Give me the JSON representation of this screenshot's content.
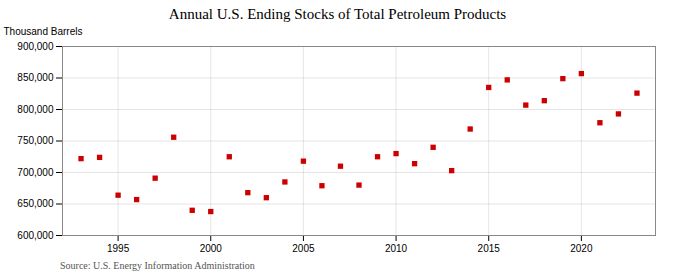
{
  "chart_data": {
    "type": "scatter",
    "title": "Annual U.S. Ending Stocks of Total Petroleum Products",
    "ylabel": "Thousand Barrels",
    "source": "Source: U.S. Energy Information Administration",
    "x": [
      1993,
      1994,
      1995,
      1996,
      1997,
      1998,
      1999,
      2000,
      2001,
      2002,
      2003,
      2004,
      2005,
      2006,
      2007,
      2008,
      2009,
      2010,
      2011,
      2012,
      2013,
      2014,
      2015,
      2016,
      2017,
      2018,
      2019,
      2020,
      2021,
      2022,
      2023
    ],
    "values": [
      722000,
      724000,
      664000,
      657000,
      691000,
      756000,
      640000,
      638000,
      725000,
      668000,
      660000,
      685000,
      718000,
      679000,
      710000,
      680000,
      725000,
      730000,
      714000,
      740000,
      703000,
      769000,
      835000,
      847000,
      807000,
      814000,
      849000,
      857000,
      779000,
      793000,
      826000
    ],
    "color": "#cc0000",
    "marker": "square",
    "xlim": [
      1992,
      2024
    ],
    "ylim": [
      600000,
      900000
    ],
    "xticks": [
      1995,
      2000,
      2005,
      2010,
      2015,
      2020
    ],
    "yticks": [
      {
        "value": 600000,
        "label": "600,000"
      },
      {
        "value": 650000,
        "label": "650,000"
      },
      {
        "value": 700000,
        "label": "700,000"
      },
      {
        "value": 750000,
        "label": "750,000"
      },
      {
        "value": 800000,
        "label": "800,000"
      },
      {
        "value": 850000,
        "label": "850,000"
      },
      {
        "value": 900000,
        "label": "900,000"
      }
    ],
    "grid": true
  }
}
